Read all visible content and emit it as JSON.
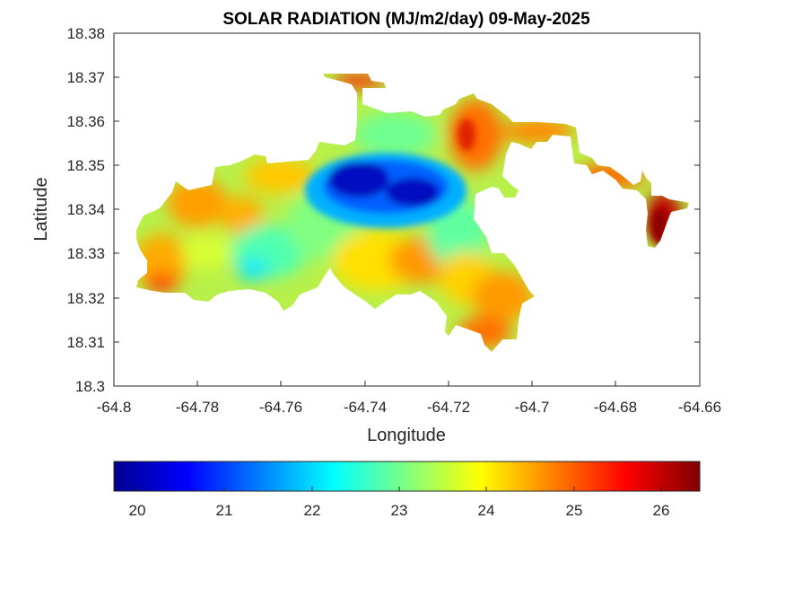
{
  "map": {
    "title": "SOLAR RADIATION (MJ/m2/day) 09-May-2025",
    "xlabel": "Longitude",
    "ylabel": "Latitude",
    "x_ticks": [
      "-64.8",
      "-64.78",
      "-64.76",
      "-64.74",
      "-64.72",
      "-64.7",
      "-64.68",
      "-64.66"
    ],
    "y_ticks": [
      "18.3",
      "18.31",
      "18.32",
      "18.33",
      "18.34",
      "18.35",
      "18.36",
      "18.37",
      "18.38"
    ],
    "xlim": [
      -64.8,
      -64.66
    ],
    "ylim": [
      18.3,
      18.38
    ],
    "colormap": "jet",
    "colorbar": {
      "range": [
        19.75,
        26.45
      ],
      "ticks": [
        "20",
        "21",
        "22",
        "23",
        "24",
        "25",
        "26"
      ],
      "location": "southoutside"
    }
  }
}
